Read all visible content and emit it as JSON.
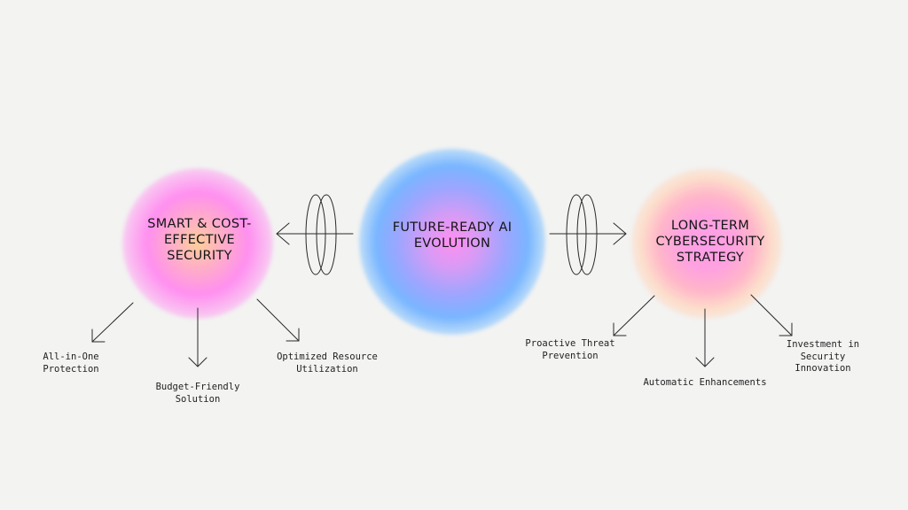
{
  "nodes": {
    "left": {
      "title": [
        "SMART & COST-",
        "EFFECTIVE",
        "SECURITY"
      ]
    },
    "center": {
      "title": [
        "FUTURE-READY AI",
        "EVOLUTION"
      ]
    },
    "right": {
      "title": [
        "LONG-TERM",
        "CYBERSECURITY",
        "STRATEGY"
      ]
    }
  },
  "left_items": [
    [
      "All-in-One",
      "Protection"
    ],
    [
      "Budget-Friendly",
      "Solution"
    ],
    [
      "Optimized Resource",
      "Utilization"
    ]
  ],
  "right_items": [
    [
      "Proactive Threat",
      "Prevention"
    ],
    [
      "Automatic Enhancements"
    ],
    [
      "Investment in",
      "Security",
      "Innovation"
    ]
  ],
  "colors": {
    "background": "#f3f3f2",
    "stroke": "#2a2a2a",
    "glow_left": [
      "#ffcf9a",
      "#ff8ff0"
    ],
    "glow_center": [
      "#ff8ff0",
      "#79b6ff"
    ],
    "glow_right": [
      "#ff9de8",
      "#ffd7be"
    ]
  },
  "icons": [
    "arrow-left-icon",
    "arrow-right-icon",
    "ring-link-icon"
  ]
}
